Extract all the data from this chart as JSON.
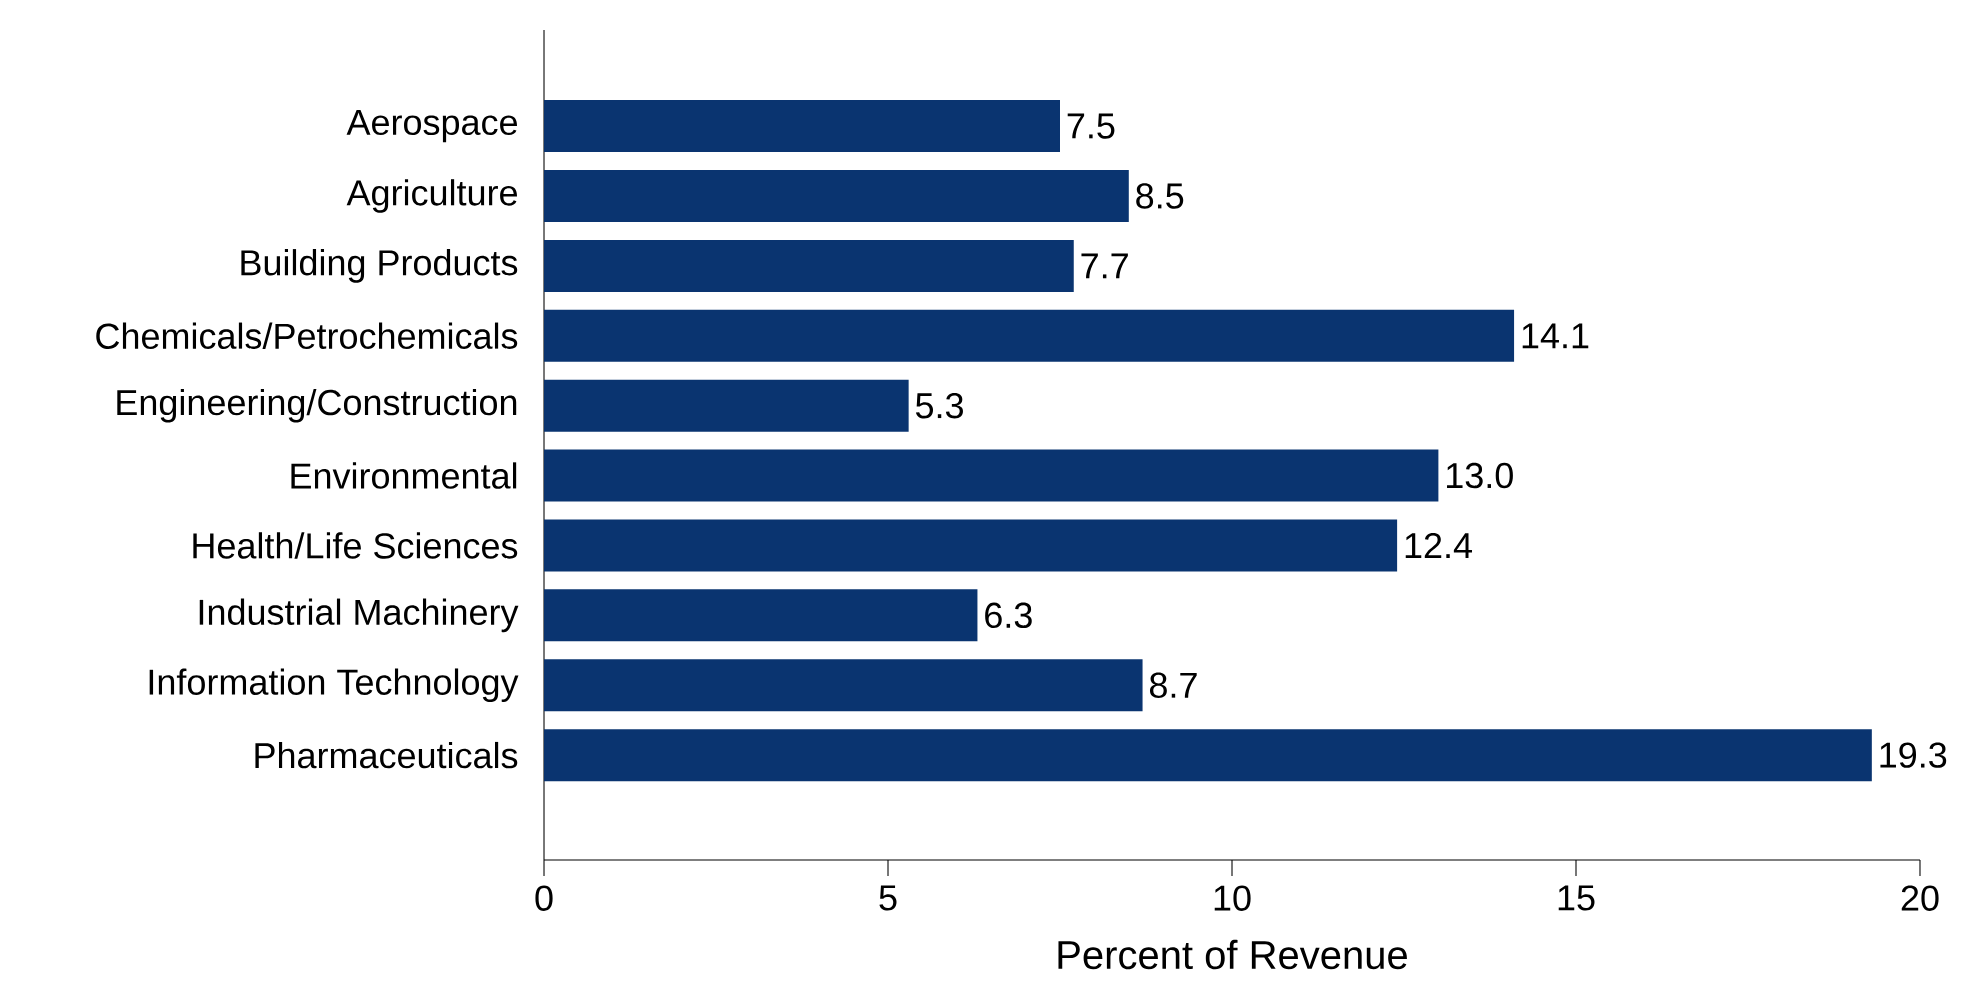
{
  "chart_data": {
    "type": "bar",
    "orientation": "horizontal",
    "xlabel": "Percent of Revenue",
    "categories": [
      "Aerospace",
      "Agriculture",
      "Building Products",
      "Chemicals/Petrochemicals",
      "Engineering/Construction",
      "Environmental",
      "Health/Life Sciences",
      "Industrial Machinery",
      "Information Technology",
      "Pharmaceuticals"
    ],
    "values": [
      7.5,
      8.5,
      7.7,
      14.1,
      5.3,
      13.0,
      12.4,
      6.3,
      8.7,
      19.3
    ],
    "value_labels": [
      "7.5",
      "8.5",
      "7.7",
      "14.1",
      "5.3",
      "13.0",
      "12.4",
      "6.3",
      "8.7",
      "19.3"
    ],
    "color": "#0a3470",
    "xlim": [
      0,
      20
    ],
    "xticks": [
      0,
      5,
      10,
      15,
      20
    ],
    "grid": false
  }
}
